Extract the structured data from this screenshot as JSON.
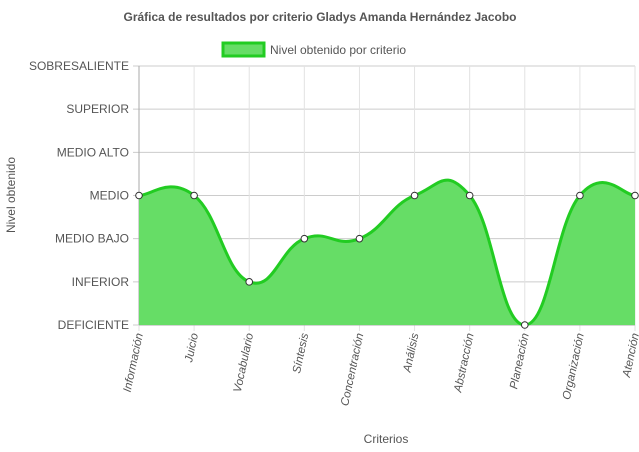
{
  "chart_data": {
    "type": "area",
    "title": "Gráfica de resultados por criterio Gladys Amanda Hernández Jacobo",
    "xlabel": "Criterios",
    "ylabel": "Nivel obtenido",
    "y_levels": [
      "DEFICIENTE",
      "INFERIOR",
      "MEDIO BAJO",
      "MEDIO",
      "MEDIO ALTO",
      "SUPERIOR",
      "SOBRESALIENTE"
    ],
    "ylim": [
      0,
      6
    ],
    "categories": [
      "Información",
      "Juicio",
      "Vocabulario",
      "Síntesis",
      "Concentración",
      "Análisis",
      "Abstracción",
      "Planeación",
      "Organización",
      "Atención"
    ],
    "series": [
      {
        "name": "Nivel obtenido por criterio",
        "values": [
          3,
          3,
          1,
          2,
          2,
          3,
          3,
          0,
          3,
          3
        ],
        "fill_color": "#66dd66",
        "line_color": "#22cc22"
      }
    ],
    "legend_position": "top",
    "grid": true
  }
}
